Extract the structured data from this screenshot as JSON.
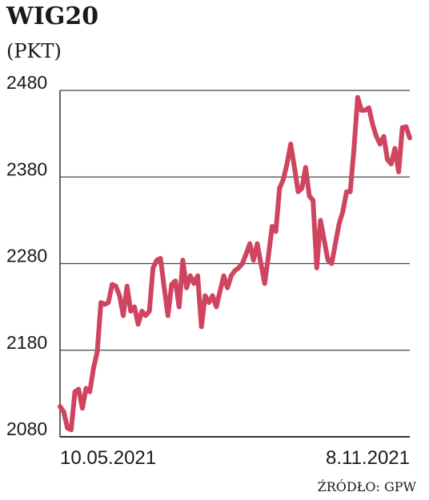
{
  "chart_data": {
    "type": "line",
    "title": "WIG20",
    "subtitle": "(PKT)",
    "source": "ŹRÓDŁO: GPW",
    "categories": [
      "10.05.2021",
      null,
      null,
      null,
      null,
      null,
      null,
      null,
      null,
      null,
      null,
      null,
      null,
      null,
      null,
      null,
      null,
      null,
      null,
      null,
      null,
      null,
      null,
      null,
      null,
      null,
      null,
      null,
      null,
      null,
      null,
      null,
      null,
      null,
      null,
      null,
      null,
      null,
      null,
      null,
      null,
      null,
      null,
      null,
      null,
      null,
      null,
      null,
      null,
      null,
      null,
      null,
      null,
      null,
      null,
      null,
      null,
      null,
      null,
      null,
      null,
      null,
      null,
      null,
      null,
      null,
      null,
      null,
      null,
      null,
      null,
      null,
      null,
      null,
      null,
      null,
      null,
      null,
      null,
      null,
      null,
      null,
      null,
      null,
      null,
      null,
      null,
      null,
      null,
      null,
      null,
      null,
      null,
      null,
      "8.11.2021"
    ],
    "series": [
      {
        "color": "#cf4560",
        "values": [
          2115,
          2109,
          2090,
          2088,
          2132,
          2135,
          2113,
          2136,
          2132,
          2159,
          2178,
          2235,
          2233,
          2235,
          2256,
          2254,
          2243,
          2220,
          2254,
          2225,
          2230,
          2210,
          2225,
          2220,
          2225,
          2275,
          2284,
          2286,
          2252,
          2220,
          2256,
          2260,
          2230,
          2284,
          2252,
          2266,
          2257,
          2266,
          2207,
          2243,
          2235,
          2243,
          2230,
          2248,
          2266,
          2252,
          2266,
          2272,
          2275,
          2280,
          2291,
          2303,
          2284,
          2303,
          2280,
          2257,
          2288,
          2323,
          2317,
          2367,
          2377,
          2395,
          2418,
          2391,
          2363,
          2367,
          2391,
          2358,
          2353,
          2275,
          2330,
          2307,
          2284,
          2280,
          2303,
          2326,
          2340,
          2363,
          2363,
          2413,
          2472,
          2457,
          2457,
          2460,
          2441,
          2427,
          2418,
          2427,
          2400,
          2395,
          2413,
          2386,
          2437,
          2438,
          2425
        ]
      }
    ],
    "ylim": [
      2080,
      2480
    ],
    "yticks": [
      2080,
      2180,
      2280,
      2380,
      2480
    ],
    "grid": true
  }
}
